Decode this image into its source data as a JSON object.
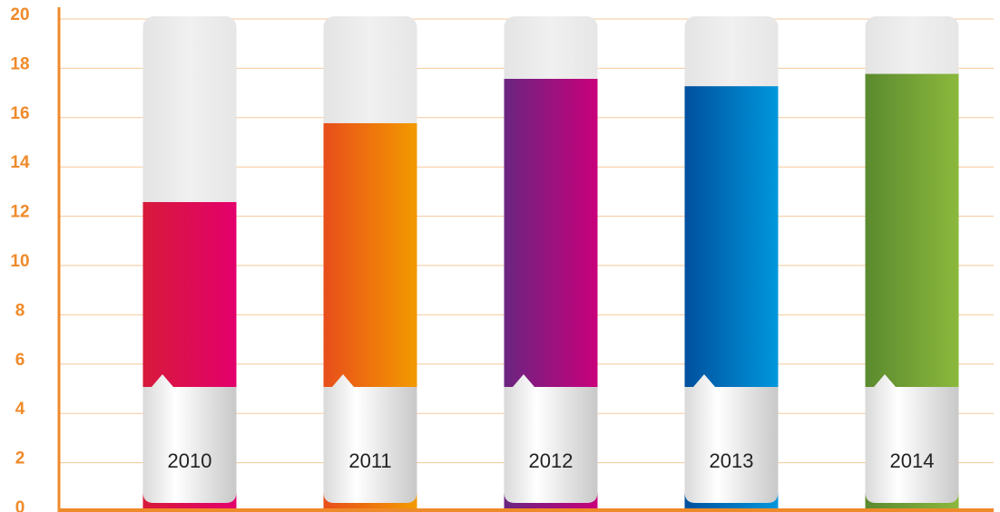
{
  "chart_data": {
    "type": "bar",
    "categories": [
      "2010",
      "2011",
      "2012",
      "2013",
      "2014"
    ],
    "values": [
      12.5,
      15.7,
      17.5,
      17.2,
      17.7
    ],
    "colors": [
      [
        "#d71a3a",
        "#e3006c"
      ],
      [
        "#e84e1b",
        "#f39a00"
      ],
      [
        "#6a2581",
        "#c9007b"
      ],
      [
        "#00509e",
        "#0097dc"
      ],
      [
        "#5b8a2f",
        "#8bb83c"
      ]
    ],
    "ylim": [
      0,
      20
    ],
    "yticks": [
      0,
      2,
      4,
      6,
      8,
      10,
      12,
      14,
      16,
      18,
      20
    ],
    "grid": true
  }
}
